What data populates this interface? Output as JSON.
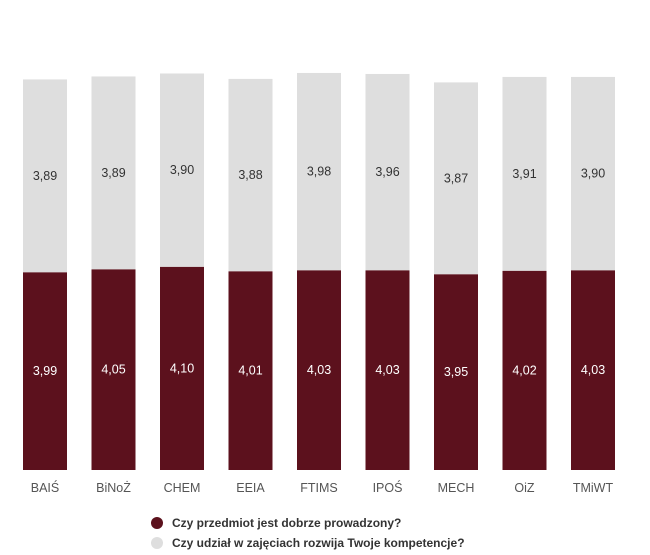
{
  "chart_data": {
    "type": "bar",
    "stacked": true,
    "categories": [
      "BAIŚ",
      "BiNoŻ",
      "CHEM",
      "EEIA",
      "FTIMS",
      "IPOŚ",
      "MECH",
      "OiZ",
      "TMiWT"
    ],
    "series": [
      {
        "name": "Czy przedmiot jest dobrze prowadzony?",
        "color": "#5c111d",
        "values": [
          3.99,
          4.05,
          4.1,
          4.01,
          4.03,
          4.03,
          3.95,
          4.02,
          4.03
        ],
        "labels": [
          "3,99",
          "4,05",
          "4,10",
          "4,01",
          "4,03",
          "4,03",
          "3,95",
          "4,02",
          "4,03"
        ]
      },
      {
        "name": "Czy udział w zajęciach rozwija Twoje kompetencje?",
        "color": "#dedede",
        "values": [
          3.89,
          3.89,
          3.9,
          3.88,
          3.98,
          3.96,
          3.87,
          3.91,
          3.9
        ],
        "labels": [
          "3,89",
          "3,89",
          "3,90",
          "3,88",
          "3,98",
          "3,96",
          "3,87",
          "3,91",
          "3,90"
        ]
      }
    ],
    "ylim": [
      0,
      8.07
    ],
    "legend_position": "bottom",
    "grid": false
  }
}
